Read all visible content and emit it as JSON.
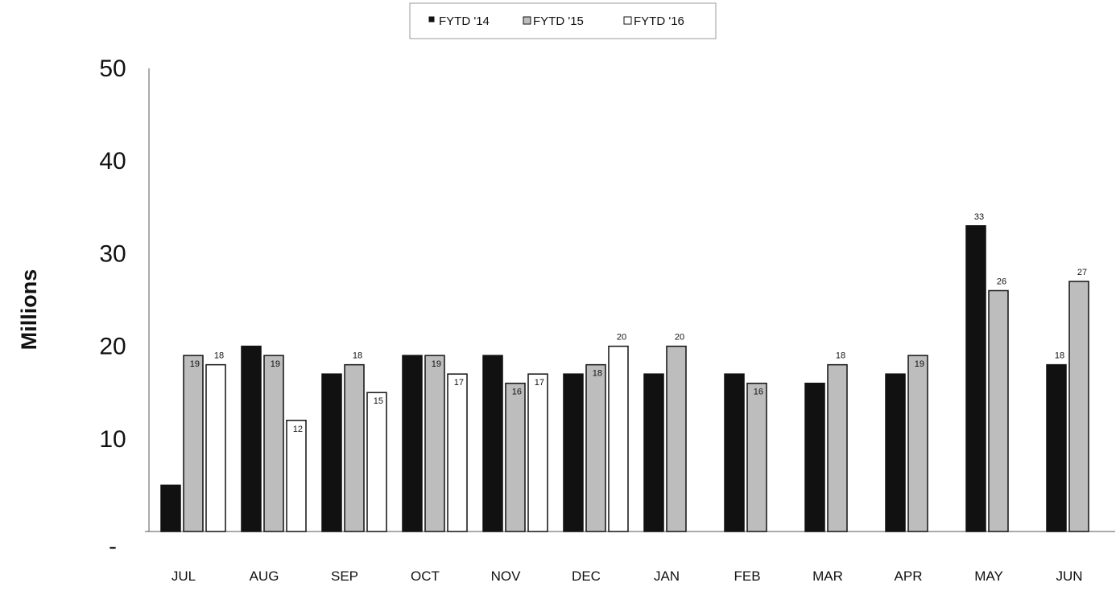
{
  "chart_data": {
    "type": "bar",
    "title": "",
    "xlabel": "",
    "ylabel": "Millions",
    "ylim": [
      0,
      50
    ],
    "y_ticks": [
      {
        "value": 0,
        "label": "-"
      },
      {
        "value": 10,
        "label": "10"
      },
      {
        "value": 20,
        "label": "20"
      },
      {
        "value": 30,
        "label": "30"
      },
      {
        "value": 40,
        "label": "40"
      },
      {
        "value": 50,
        "label": "50"
      }
    ],
    "grid": false,
    "legend_position": "top-center",
    "categories": [
      "JUL",
      "AUG",
      "SEP",
      "OCT",
      "NOV",
      "DEC",
      "JAN",
      "FEB",
      "MAR",
      "APR",
      "MAY",
      "JUN"
    ],
    "series": [
      {
        "name": "FYTD '14",
        "color": "#111111",
        "values": [
          5,
          20,
          17,
          19,
          19,
          17,
          17,
          17,
          16,
          17,
          33,
          18
        ],
        "labels": [
          "",
          "",
          "",
          "",
          "",
          "",
          "",
          "",
          "",
          "",
          "33",
          "18"
        ]
      },
      {
        "name": "FYTD '15",
        "color": "#bdbdbd",
        "values": [
          19,
          19,
          18,
          19,
          16,
          18,
          20,
          16,
          18,
          19,
          26,
          27
        ],
        "labels": [
          "19",
          "19",
          "18",
          "19",
          "16",
          "18",
          "20",
          "16",
          "18",
          "19",
          "26",
          "27"
        ]
      },
      {
        "name": "FYTD '16",
        "color": "#ffffff",
        "values": [
          18,
          12,
          15,
          17,
          17,
          20,
          null,
          null,
          null,
          null,
          null,
          null
        ],
        "labels": [
          "18",
          "12",
          "15",
          "17",
          "17",
          "20",
          "",
          "",
          "",
          "",
          "",
          ""
        ]
      }
    ]
  }
}
